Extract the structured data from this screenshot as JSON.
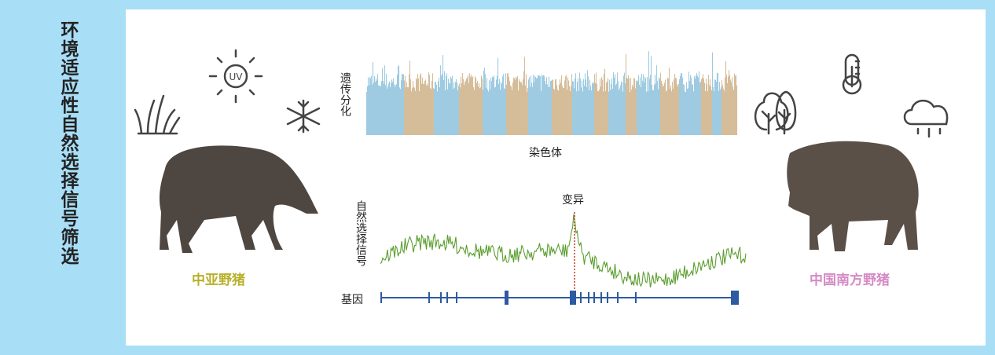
{
  "side_title": "环境适应性自然选择信号筛选",
  "manhattan": {
    "y_label": "遗传分化",
    "x_label": "染色体"
  },
  "signal": {
    "y_label": "自然选择信号",
    "variant_label": "变异",
    "gene_label": "基因"
  },
  "animals": [
    {
      "label": "中亚野猪"
    },
    {
      "label": "中国南方野猪"
    }
  ]
}
